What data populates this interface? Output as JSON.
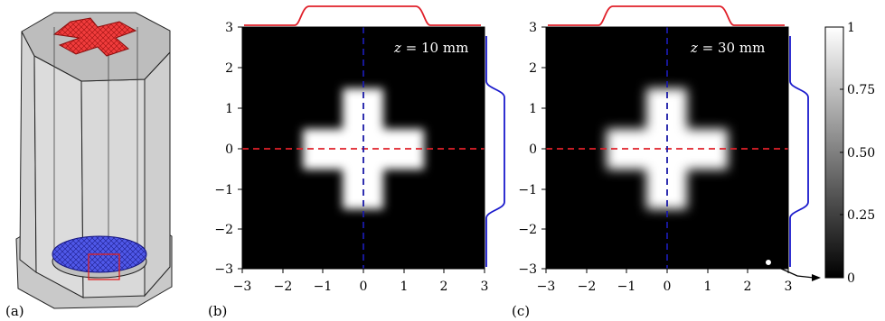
{
  "panels": {
    "a": {
      "label": "(a)"
    },
    "b": {
      "label": "(b)",
      "annotation": {
        "var": "z",
        "rest": " = 10 mm"
      }
    },
    "c": {
      "label": "(c)",
      "annotation": {
        "var": "z",
        "rest": " = 30 mm"
      }
    }
  },
  "colorbar": {
    "ticks": [
      "1",
      "0.75",
      "0.50",
      "0.25",
      "0"
    ]
  },
  "chart_data": [
    {
      "type": "heatmap",
      "panel": "(b)",
      "xlim": [
        -3,
        3
      ],
      "ylim": [
        -3,
        3
      ],
      "xticks": [
        "−3",
        "−2",
        "−1",
        "0",
        "1",
        "2",
        "3"
      ],
      "yticks": [
        "3",
        "2",
        "1",
        "0",
        "−1",
        "−2",
        "−3"
      ],
      "shape": "cross",
      "cross": {
        "half_arm_length": 1.5,
        "half_arm_width": 0.5,
        "value_inside": 1,
        "value_outside": 0
      },
      "cut_lines": [
        {
          "axis": "y",
          "value": 0,
          "color": "#e0202a"
        },
        {
          "axis": "x",
          "value": 0,
          "color": "#1a1aa8"
        }
      ],
      "profiles": {
        "top_color": "#e0202a",
        "right_color": "#1a1acc"
      }
    },
    {
      "type": "heatmap",
      "panel": "(c)",
      "xlim": [
        -3,
        3
      ],
      "ylim": [
        -3,
        3
      ],
      "xticks": [
        "−3",
        "−2",
        "−1",
        "0",
        "1",
        "2",
        "3"
      ],
      "yticks": [
        "3",
        "2",
        "1",
        "0",
        "−1",
        "−2",
        "−3"
      ],
      "shape": "cross",
      "cross": {
        "half_arm_length": 1.5,
        "half_arm_width": 0.5,
        "value_inside": 1,
        "value_outside": 0
      },
      "cut_lines": [
        {
          "axis": "y",
          "value": 0,
          "color": "#e0202a"
        },
        {
          "axis": "x",
          "value": 0,
          "color": "#1a1aa8"
        }
      ],
      "profiles": {
        "top_color": "#e0202a",
        "right_color": "#1a1acc"
      }
    }
  ]
}
